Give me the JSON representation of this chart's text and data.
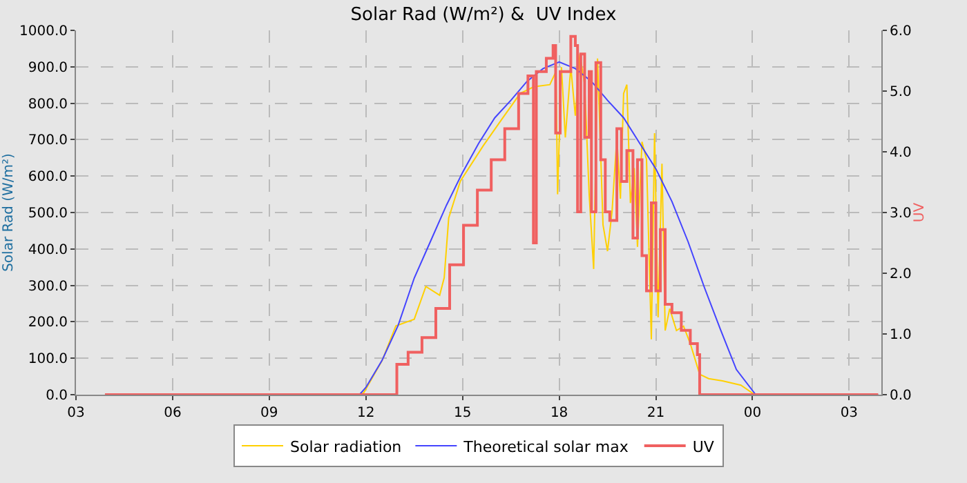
{
  "chart_data": {
    "type": "line",
    "title": "Solar Rad (W/m²) &  UV Index",
    "ylabel": "Solar Rad (W/m²)",
    "y2label": "UV",
    "xlim": [
      3,
      28
    ],
    "xticks": [
      {
        "value": 3,
        "label": "03"
      },
      {
        "value": 6,
        "label": "06"
      },
      {
        "value": 9,
        "label": "09"
      },
      {
        "value": 12,
        "label": "12"
      },
      {
        "value": 15,
        "label": "15"
      },
      {
        "value": 18,
        "label": "18"
      },
      {
        "value": 21,
        "label": "21"
      },
      {
        "value": 24,
        "label": "00"
      },
      {
        "value": 27,
        "label": "03"
      }
    ],
    "ylim": [
      0,
      1000
    ],
    "yticks": [
      {
        "value": 0,
        "label": "0.0"
      },
      {
        "value": 100,
        "label": "100.0"
      },
      {
        "value": 200,
        "label": "200.0"
      },
      {
        "value": 300,
        "label": "300.0"
      },
      {
        "value": 400,
        "label": "400.0"
      },
      {
        "value": 500,
        "label": "500.0"
      },
      {
        "value": 600,
        "label": "600.0"
      },
      {
        "value": 700,
        "label": "700.0"
      },
      {
        "value": 800,
        "label": "800.0"
      },
      {
        "value": 900,
        "label": "900.0"
      },
      {
        "value": 1000,
        "label": "1000.0"
      }
    ],
    "y2lim": [
      0,
      6
    ],
    "y2ticks": [
      {
        "value": 0,
        "label": "0.0"
      },
      {
        "value": 1,
        "label": "1.0"
      },
      {
        "value": 2,
        "label": "2.0"
      },
      {
        "value": 3,
        "label": "3.0"
      },
      {
        "value": 4,
        "label": "4.0"
      },
      {
        "value": 5,
        "label": "5.0"
      },
      {
        "value": 6,
        "label": "6.0"
      }
    ],
    "grid": true,
    "legend": "bottom",
    "marker": "none",
    "line_style": "solid",
    "series": [
      {
        "name": "Solar radiation",
        "color": "#ffd000",
        "x": [
          3.9,
          11.8,
          11.93,
          12.5,
          12.93,
          13.5,
          13.86,
          14.29,
          14.43,
          14.57,
          14.93,
          15.64,
          16.21,
          16.79,
          17.21,
          17.71,
          17.9,
          17.95,
          18.07,
          18.19,
          18.36,
          18.5,
          18.64,
          18.79,
          18.93,
          19.07,
          19.19,
          19.36,
          19.5,
          19.64,
          19.79,
          19.9,
          20.0,
          20.1,
          20.21,
          20.33,
          20.43,
          20.57,
          20.71,
          20.86,
          20.96,
          21.07,
          21.19,
          21.29,
          21.43,
          21.64,
          21.86,
          22.07,
          22.36,
          22.64,
          23.07,
          23.64,
          24.07,
          27.9
        ],
        "values": [
          0,
          0,
          5,
          93,
          189,
          207,
          297,
          273,
          321,
          485,
          586,
          683,
          755,
          827,
          845,
          851,
          887,
          550,
          899,
          706,
          899,
          766,
          935,
          851,
          550,
          345,
          923,
          466,
          394,
          502,
          706,
          538,
          827,
          851,
          526,
          622,
          406,
          694,
          646,
          152,
          718,
          212,
          634,
          176,
          236,
          176,
          188,
          140,
          56,
          44,
          38,
          26,
          0,
          0
        ]
      },
      {
        "name": "Theoretical solar max",
        "color": "#4444ff",
        "x": [
          3.9,
          11.8,
          12.0,
          12.5,
          13.0,
          13.5,
          14.0,
          14.5,
          15.0,
          15.5,
          16.0,
          16.5,
          17.0,
          17.5,
          18.0,
          18.5,
          19.0,
          19.5,
          20.0,
          20.5,
          21.0,
          21.5,
          22.0,
          22.5,
          23.0,
          23.5,
          24.1,
          27.9
        ],
        "values": [
          0,
          0,
          20,
          94,
          190,
          320,
          420,
          520,
          610,
          690,
          760,
          808,
          860,
          895,
          913,
          895,
          860,
          808,
          760,
          690,
          620,
          530,
          420,
          296,
          180,
          69,
          0,
          0
        ]
      },
      {
        "name": "UV",
        "color": "#f06060",
        "type": "step",
        "axis": "y2",
        "x": [
          3.9,
          12.96,
          13.31,
          13.74,
          14.17,
          14.6,
          15.03,
          15.46,
          15.89,
          16.31,
          16.74,
          17.03,
          17.2,
          17.29,
          17.6,
          17.81,
          17.89,
          18.03,
          18.36,
          18.5,
          18.57,
          18.67,
          18.79,
          18.93,
          19.0,
          19.14,
          19.29,
          19.43,
          19.57,
          19.79,
          19.93,
          20.1,
          20.29,
          20.43,
          20.57,
          20.71,
          20.86,
          21.0,
          21.14,
          21.29,
          21.5,
          21.79,
          22.07,
          22.29,
          22.36,
          27.9
        ],
        "values": [
          0,
          0.5,
          0.7,
          0.94,
          1.42,
          2.14,
          2.79,
          3.37,
          3.87,
          4.38,
          4.96,
          5.25,
          2.5,
          5.32,
          5.54,
          5.75,
          4.31,
          5.32,
          5.9,
          5.75,
          3.01,
          5.61,
          4.24,
          5.32,
          3.01,
          5.47,
          3.87,
          3.01,
          2.87,
          4.38,
          3.51,
          4.02,
          2.58,
          3.87,
          2.29,
          1.71,
          3.16,
          1.71,
          2.72,
          1.49,
          1.35,
          1.06,
          0.84,
          0.66,
          0,
          0
        ]
      }
    ]
  }
}
